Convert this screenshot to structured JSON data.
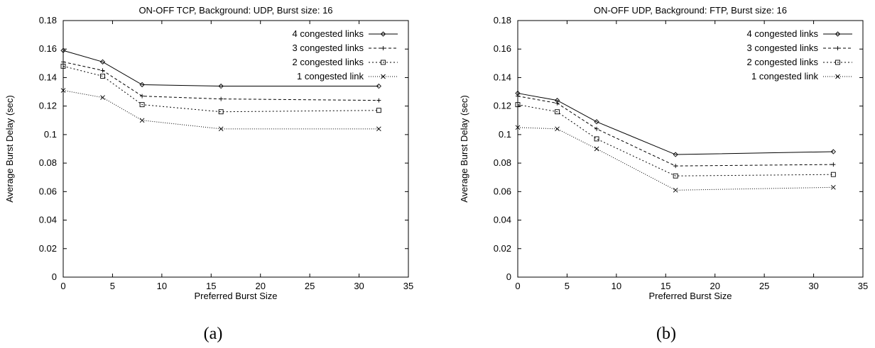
{
  "chart_data": [
    {
      "type": "line",
      "title": "ON-OFF TCP, Background: UDP, Burst size: 16",
      "xlabel": "Preferred Burst Size",
      "ylabel": "Average Burst Delay (sec)",
      "caption": "(a)",
      "xlim": [
        0,
        35
      ],
      "ylim": [
        0,
        0.18
      ],
      "xticks": [
        0,
        5,
        10,
        15,
        20,
        25,
        30,
        35
      ],
      "yticks": [
        0,
        0.02,
        0.04,
        0.06,
        0.08,
        0.1,
        0.12,
        0.14,
        0.16,
        0.18
      ],
      "grid": false,
      "legend_position": "top-right",
      "x": [
        0,
        4,
        8,
        16,
        32
      ],
      "series": [
        {
          "name": "4 congested links",
          "marker": "diamond",
          "dash": "solid",
          "values": [
            0.159,
            0.151,
            0.135,
            0.134,
            0.134
          ]
        },
        {
          "name": "3 congested links",
          "marker": "plus",
          "dash": "dashed",
          "values": [
            0.151,
            0.145,
            0.127,
            0.125,
            0.124
          ]
        },
        {
          "name": "2 congested links",
          "marker": "square",
          "dash": "dotted",
          "values": [
            0.148,
            0.141,
            0.121,
            0.116,
            0.117
          ]
        },
        {
          "name": "1 congested link",
          "marker": "cross",
          "dash": "fine-dotted",
          "values": [
            0.131,
            0.126,
            0.11,
            0.104,
            0.104
          ]
        }
      ]
    },
    {
      "type": "line",
      "title": "ON-OFF UDP, Background: FTP, Burst size: 16",
      "xlabel": "Preferred Burst Size",
      "ylabel": "Average Burst Delay (sec)",
      "caption": "(b)",
      "xlim": [
        0,
        35
      ],
      "ylim": [
        0,
        0.18
      ],
      "xticks": [
        0,
        5,
        10,
        15,
        20,
        25,
        30,
        35
      ],
      "yticks": [
        0,
        0.02,
        0.04,
        0.06,
        0.08,
        0.1,
        0.12,
        0.14,
        0.16,
        0.18
      ],
      "grid": false,
      "legend_position": "top-right",
      "x": [
        0,
        4,
        8,
        16,
        32
      ],
      "series": [
        {
          "name": "4 congested links",
          "marker": "diamond",
          "dash": "solid",
          "values": [
            0.129,
            0.124,
            0.109,
            0.086,
            0.088
          ]
        },
        {
          "name": "3 congested links",
          "marker": "plus",
          "dash": "dashed",
          "values": [
            0.127,
            0.122,
            0.104,
            0.078,
            0.079
          ]
        },
        {
          "name": "2 congested links",
          "marker": "square",
          "dash": "dotted",
          "values": [
            0.121,
            0.116,
            0.097,
            0.071,
            0.072
          ]
        },
        {
          "name": "1 congested link",
          "marker": "cross",
          "dash": "fine-dotted",
          "values": [
            0.105,
            0.104,
            0.09,
            0.061,
            0.063
          ]
        }
      ]
    }
  ]
}
